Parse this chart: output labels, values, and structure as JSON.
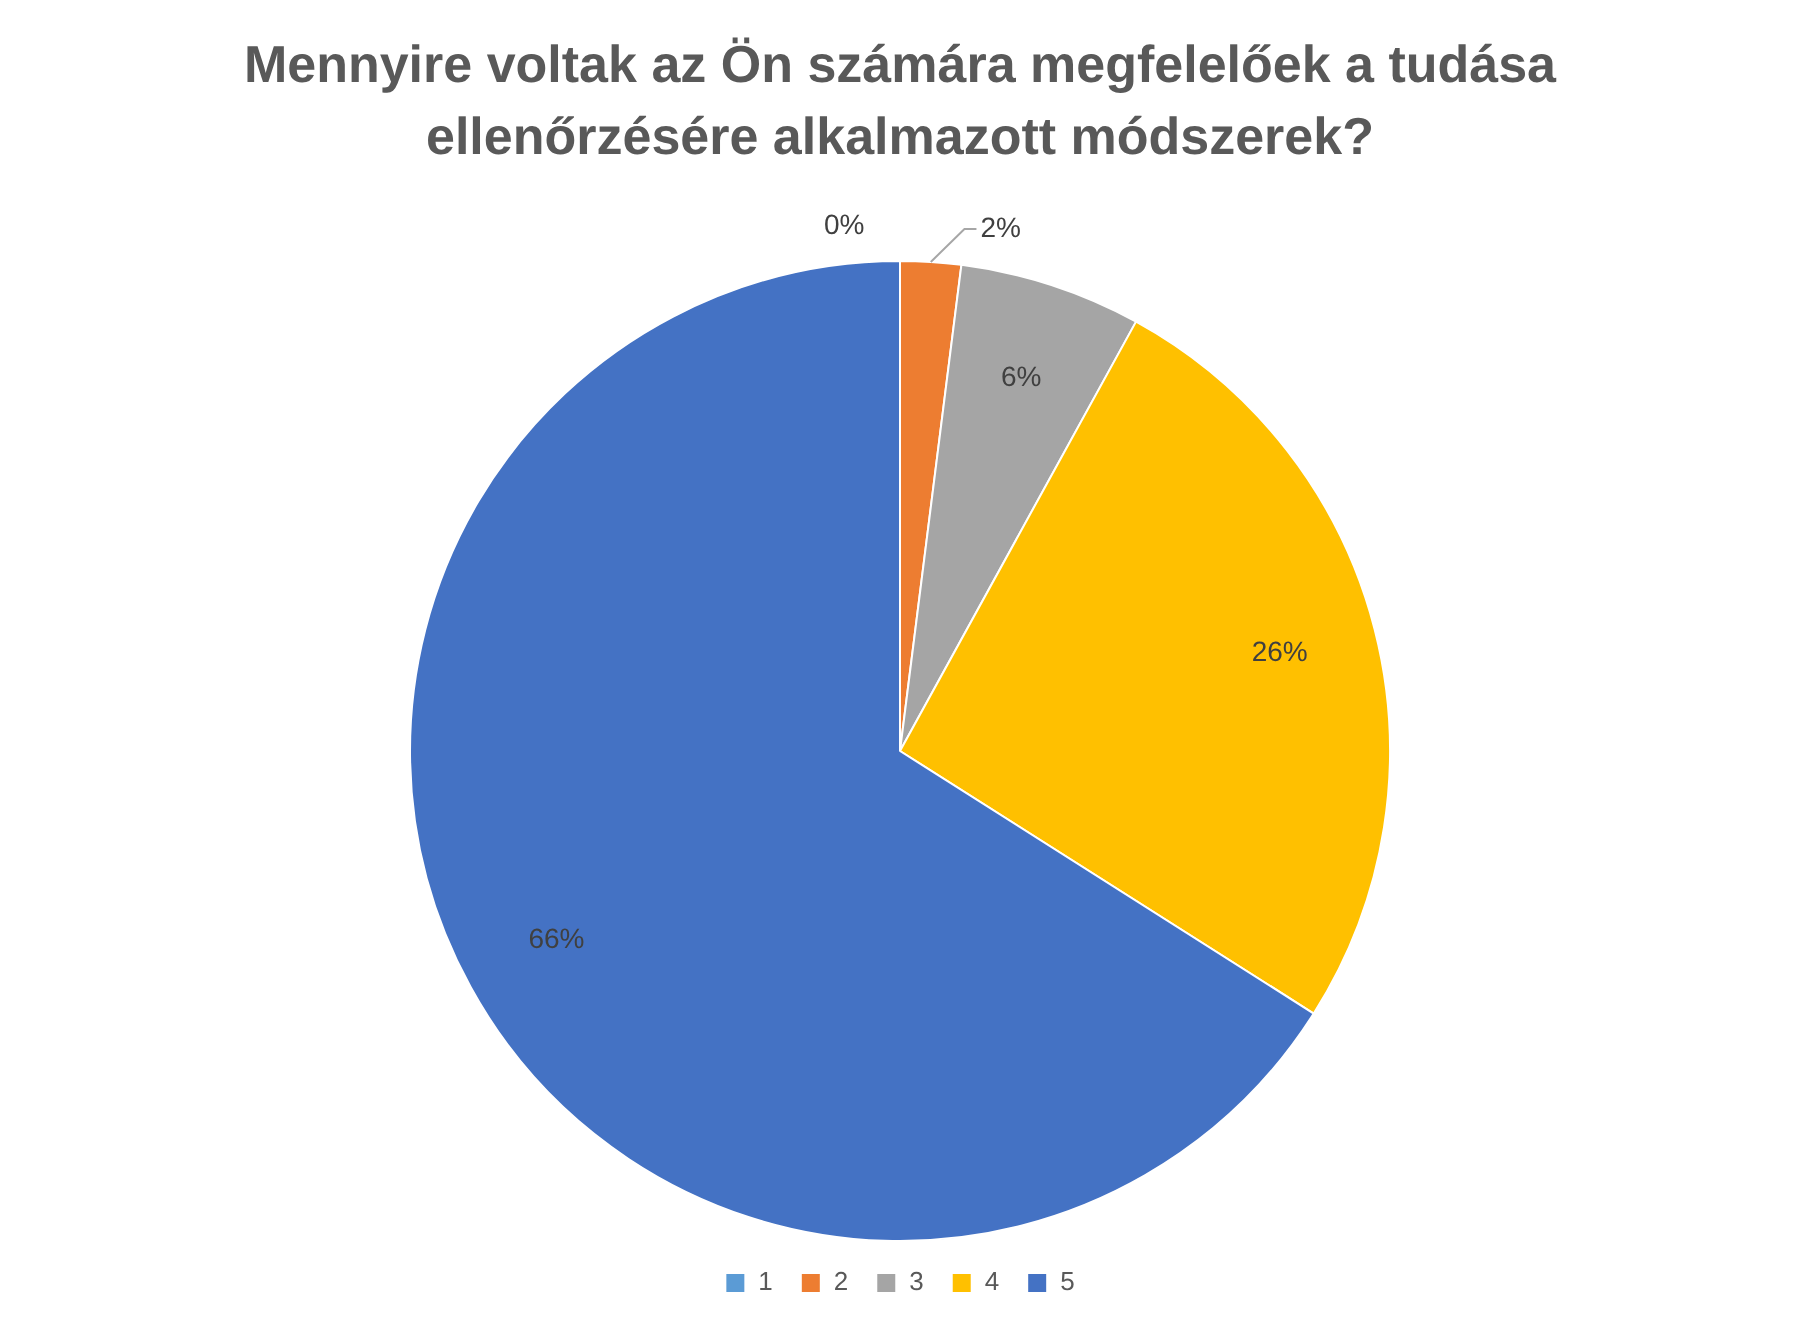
{
  "chart_data": {
    "type": "pie",
    "title": "Mennyire voltak az Ön számára megfelelőek a tudása ellenőrzésére alkalmazott módszerek?",
    "categories": [
      "1",
      "2",
      "3",
      "4",
      "5"
    ],
    "values": [
      0,
      2,
      6,
      26,
      66
    ],
    "colors": [
      "#5b9bd5",
      "#ed7d31",
      "#a5a5a5",
      "#ffc000",
      "#4472c4"
    ],
    "value_labels": [
      "0%",
      "2%",
      "6%",
      "26%",
      "66%"
    ],
    "legend": "bottom"
  }
}
